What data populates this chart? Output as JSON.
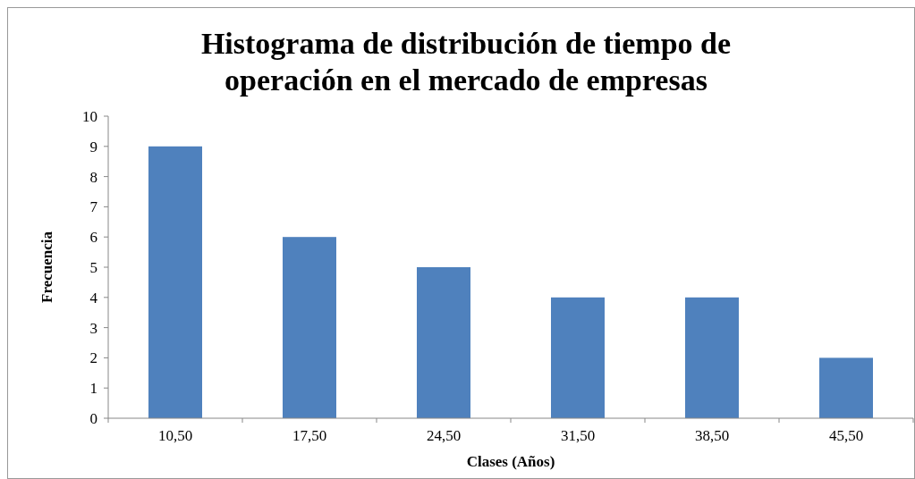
{
  "chart_data": {
    "type": "bar",
    "title": "Histograma de distribución de tiempo de operación en el mercado de empresas",
    "xlabel": "Clases (Años)",
    "ylabel": "Frecuencia",
    "categories": [
      "10,50",
      "17,50",
      "24,50",
      "31,50",
      "38,50",
      "45,50"
    ],
    "values": [
      9,
      6,
      5,
      4,
      4,
      2
    ],
    "color": "#4f81bd",
    "ylim": [
      0,
      10
    ],
    "yticks": [
      0,
      1,
      2,
      3,
      4,
      5,
      6,
      7,
      8,
      9,
      10
    ],
    "grid": false
  }
}
